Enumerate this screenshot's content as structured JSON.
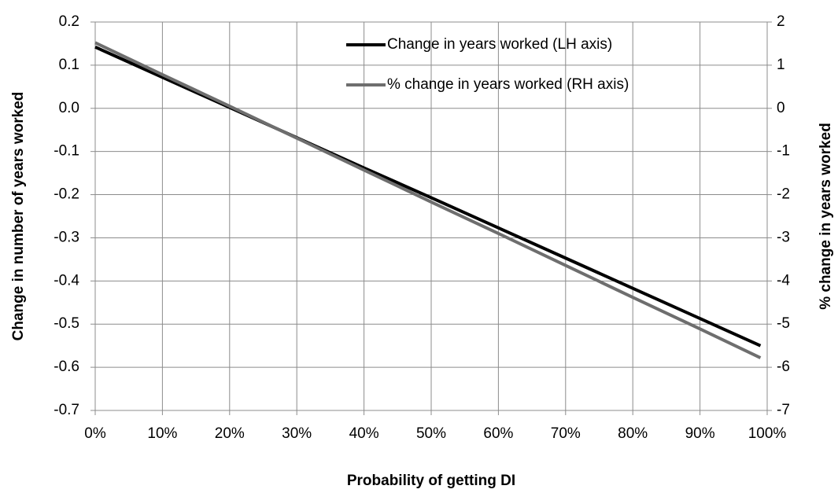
{
  "chart_data": {
    "type": "line",
    "xlabel": "Probability of getting DI",
    "ylabel": "Change in number of years worked",
    "y2label": "% change in years worked",
    "x": [
      0,
      10,
      20,
      30,
      40,
      50,
      60,
      70,
      80,
      90,
      99
    ],
    "series": [
      {
        "name": "Change in years worked (LH axis)",
        "color": "#000000",
        "values": [
          0.142,
          0.072,
          0.002,
          -0.068,
          -0.138,
          -0.207,
          -0.277,
          -0.347,
          -0.417,
          -0.487,
          -0.55
        ]
      },
      {
        "name": "% change in years worked (RH axis)",
        "color": "#6e6e6e",
        "axis": "y2",
        "values": [
          1.52,
          0.78,
          0.05,
          -0.69,
          -1.43,
          -2.17,
          -2.9,
          -3.64,
          -4.38,
          -5.11,
          -5.78
        ]
      }
    ],
    "xlim": [
      0,
      100
    ],
    "xticks": [
      {
        "value": 0,
        "label": "0%"
      },
      {
        "value": 10,
        "label": "10%"
      },
      {
        "value": 20,
        "label": "20%"
      },
      {
        "value": 30,
        "label": "30%"
      },
      {
        "value": 40,
        "label": "40%"
      },
      {
        "value": 50,
        "label": "50%"
      },
      {
        "value": 60,
        "label": "60%"
      },
      {
        "value": 70,
        "label": "70%"
      },
      {
        "value": 80,
        "label": "80%"
      },
      {
        "value": 90,
        "label": "90%"
      },
      {
        "value": 100,
        "label": "100%"
      }
    ],
    "ylim": [
      -0.7,
      0.2
    ],
    "yticks": [
      0.2,
      0.1,
      {
        "value": 0,
        "label": "0.0"
      },
      -0.1,
      -0.2,
      -0.3,
      -0.4,
      -0.5,
      -0.6,
      -0.7
    ],
    "y2lim": [
      -7,
      2
    ],
    "y2ticks": [
      2,
      1,
      0,
      -1,
      -2,
      -3,
      -4,
      -5,
      -6,
      -7
    ],
    "grid": true,
    "legend": "top-right"
  }
}
